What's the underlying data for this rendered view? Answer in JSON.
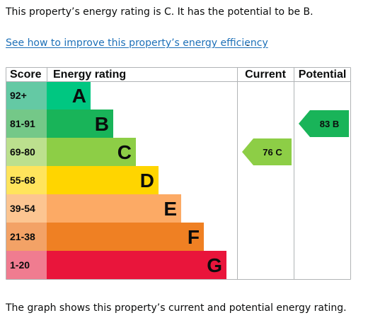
{
  "intro": "This property’s energy rating is C. It has the potential to be B.",
  "improve_link": "See how to improve this property’s energy efficiency",
  "improve_link_suffix": ".",
  "footer": "The graph shows this property’s current and potential energy rating.",
  "chart_data": {
    "type": "table",
    "headers": {
      "score": "Score",
      "rating": "Energy rating",
      "current": "Current",
      "potential": "Potential"
    },
    "bands": [
      {
        "score": "92+",
        "letter": "A",
        "color": "#00c781",
        "score_color": "#64c9a4"
      },
      {
        "score": "81-91",
        "letter": "B",
        "color": "#19b459",
        "score_color": "#74c888"
      },
      {
        "score": "69-80",
        "letter": "C",
        "color": "#8dce46",
        "score_color": "#bce08e"
      },
      {
        "score": "55-68",
        "letter": "D",
        "color": "#ffd500",
        "score_color": "#ffe45c"
      },
      {
        "score": "39-54",
        "letter": "E",
        "color": "#fcaa65",
        "score_color": "#fcc591"
      },
      {
        "score": "21-38",
        "letter": "F",
        "color": "#ef8023",
        "score_color": "#f3a266"
      },
      {
        "score": "1-20",
        "letter": "G",
        "color": "#e9153b",
        "score_color": "#f07c90"
      }
    ],
    "current": {
      "value": 76,
      "band": "C",
      "label": "76 C",
      "color": "#8dce46"
    },
    "potential": {
      "value": 83,
      "band": "B",
      "label": "83 B",
      "color": "#19b459"
    }
  }
}
